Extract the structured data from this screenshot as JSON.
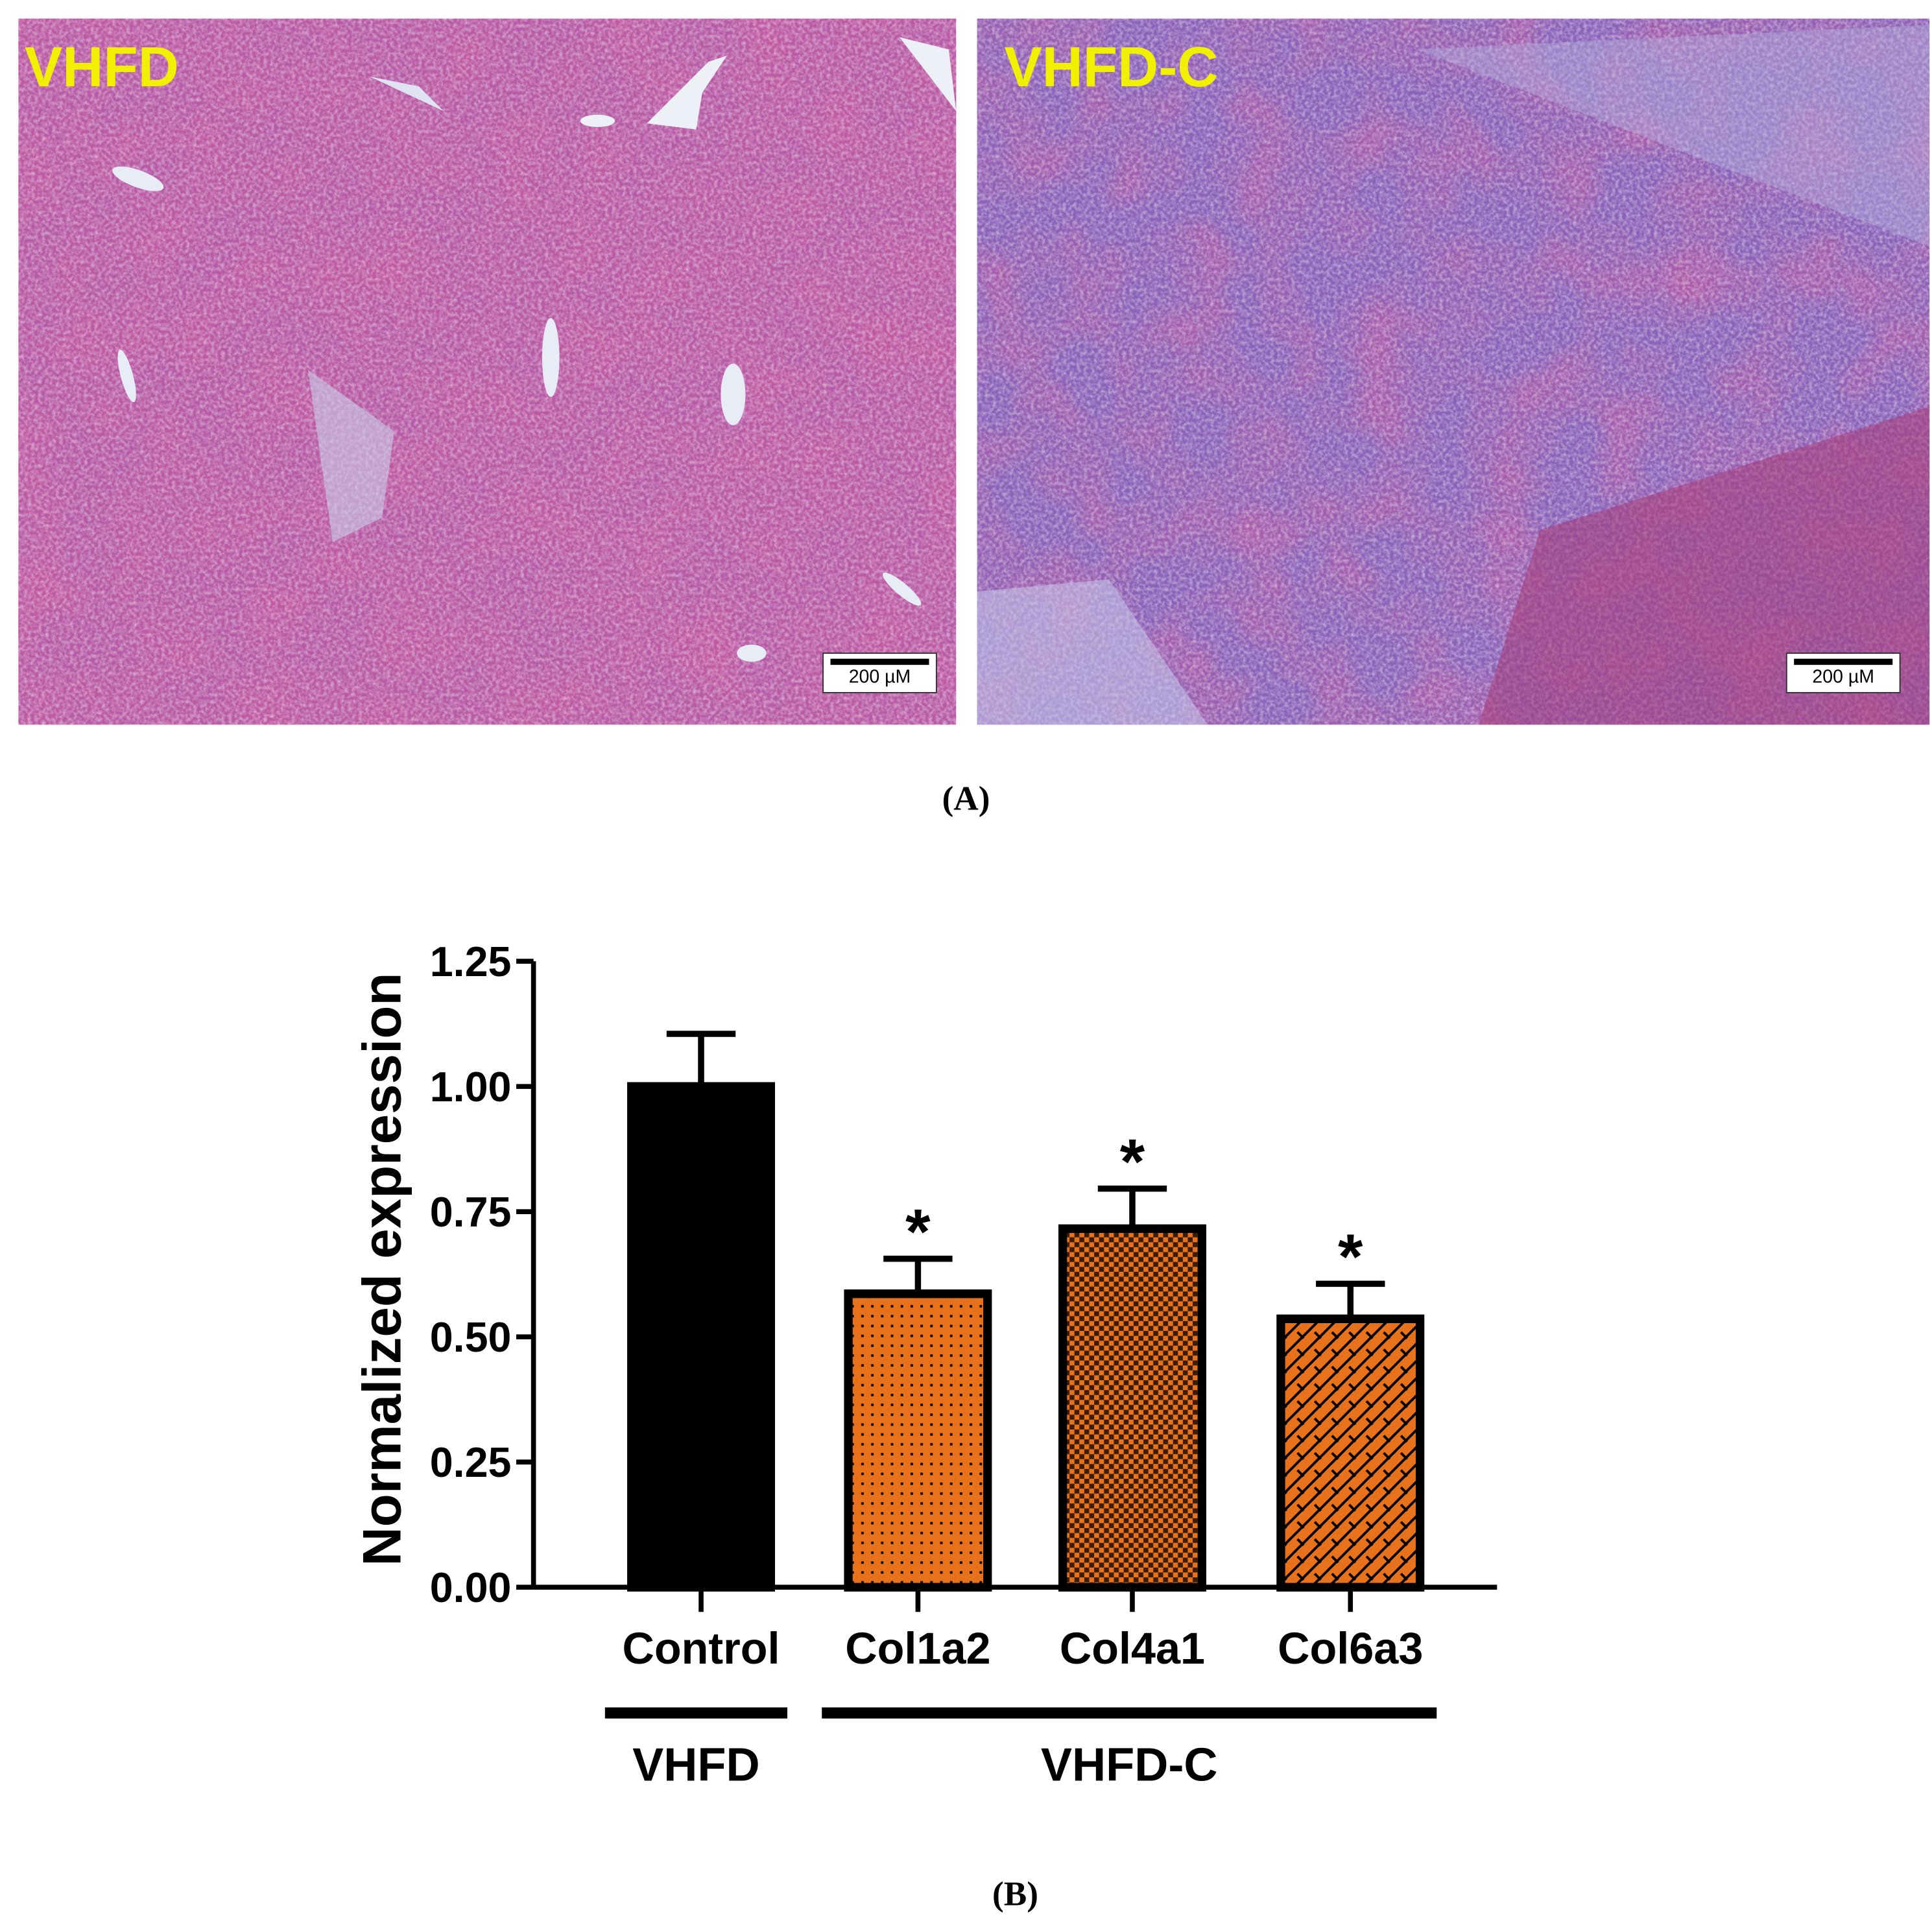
{
  "figure": {
    "panel_a": {
      "label": "(A)",
      "images": [
        {
          "label": "VHFD",
          "scale_bar": "200 µM"
        },
        {
          "label": "VHFD-C",
          "scale_bar": "200 µM"
        }
      ]
    },
    "panel_b": {
      "label": "(B)"
    }
  },
  "chart_data": {
    "type": "bar",
    "y_label": "Normalized expression",
    "categories": [
      "Control",
      "Col1a2",
      "Col4a1",
      "Col6a3"
    ],
    "values": [
      1.0,
      0.586,
      0.716,
      0.536
    ],
    "errors": [
      0.105,
      0.07,
      0.08,
      0.07
    ],
    "significance": [
      null,
      "*",
      "*",
      "*"
    ],
    "colors": [
      "#000000",
      "#e8721c",
      "#e8721c",
      "#e8721c"
    ],
    "patterns": [
      "solid",
      "dots",
      "checker",
      "weave"
    ],
    "groups": [
      {
        "label": "VHFD",
        "categories": [
          "Control"
        ]
      },
      {
        "label": "VHFD-C",
        "categories": [
          "Col1a2",
          "Col4a1",
          "Col6a3"
        ]
      }
    ],
    "ylim": [
      0,
      1.25
    ],
    "yticks": [
      {
        "value": 0,
        "label": "0.00"
      },
      {
        "value": 0.25,
        "label": "0.25"
      },
      {
        "value": 0.5,
        "label": "0.50"
      },
      {
        "value": 0.75,
        "label": "0.75"
      },
      {
        "value": 1,
        "label": "1.00"
      },
      {
        "value": 1.25,
        "label": "1.25"
      }
    ]
  }
}
